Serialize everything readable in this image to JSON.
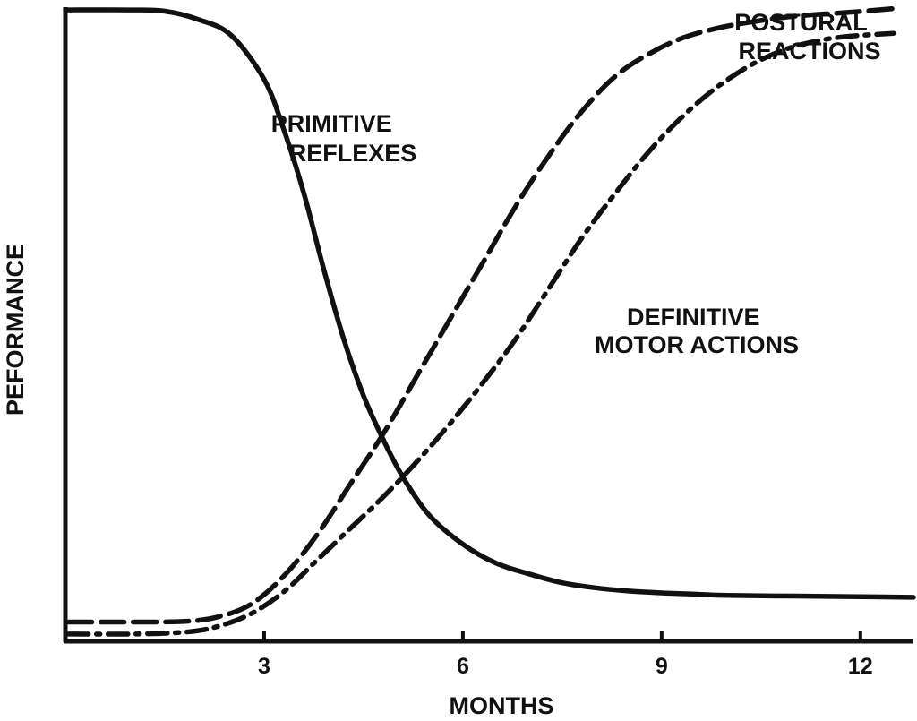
{
  "chart_data": {
    "type": "line",
    "title": "",
    "xlabel": "MONTHS",
    "ylabel": "PEFORMANCE",
    "xlim": [
      0,
      12.8
    ],
    "ylim": [
      0,
      100
    ],
    "x_ticks": [
      3,
      6,
      9,
      12
    ],
    "grid": false,
    "legend": "none",
    "series": [
      {
        "name": "PRIMITIVE REFLEXES",
        "line_style": "solid",
        "points": [
          [
            0,
            99
          ],
          [
            1,
            99
          ],
          [
            1.5,
            98.8
          ],
          [
            2,
            97.5
          ],
          [
            2.5,
            95
          ],
          [
            3,
            88
          ],
          [
            3.3,
            80
          ],
          [
            3.6,
            70
          ],
          [
            3.9,
            58
          ],
          [
            4.2,
            47
          ],
          [
            4.5,
            38
          ],
          [
            4.8,
            31
          ],
          [
            5.1,
            25
          ],
          [
            5.5,
            19
          ],
          [
            6,
            14.5
          ],
          [
            6.5,
            11.5
          ],
          [
            7,
            9.8
          ],
          [
            7.5,
            8.4
          ],
          [
            8,
            7.6
          ],
          [
            8.5,
            7.1
          ],
          [
            9,
            6.8
          ],
          [
            9.5,
            6.6
          ],
          [
            10,
            6.4
          ],
          [
            11,
            6.3
          ],
          [
            12,
            6.2
          ],
          [
            12.8,
            6.1
          ]
        ]
      },
      {
        "name": "POSTURAL REACTIONS",
        "line_style": "dashed",
        "points": [
          [
            0.05,
            2.2
          ],
          [
            1,
            2.2
          ],
          [
            1.8,
            2.3
          ],
          [
            2.3,
            3
          ],
          [
            2.8,
            5
          ],
          [
            3.3,
            9.5
          ],
          [
            3.8,
            16
          ],
          [
            4.3,
            24
          ],
          [
            4.8,
            32
          ],
          [
            5.3,
            41
          ],
          [
            5.8,
            50
          ],
          [
            6.3,
            59
          ],
          [
            6.8,
            68
          ],
          [
            7.3,
            76
          ],
          [
            7.8,
            83
          ],
          [
            8.3,
            88.5
          ],
          [
            8.8,
            92
          ],
          [
            9.3,
            94.5
          ],
          [
            9.8,
            96
          ],
          [
            10.3,
            97
          ],
          [
            11,
            98
          ],
          [
            11.8,
            98.6
          ],
          [
            12.5,
            99.2
          ]
        ]
      },
      {
        "name": "DEFINITIVE MOTOR ACTIONS",
        "line_style": "dash-dot",
        "points": [
          [
            0.05,
            0.3
          ],
          [
            1,
            0.3
          ],
          [
            1.8,
            0.6
          ],
          [
            2.3,
            1.5
          ],
          [
            2.8,
            3.5
          ],
          [
            3.3,
            7
          ],
          [
            3.8,
            12
          ],
          [
            4.3,
            17
          ],
          [
            4.8,
            22
          ],
          [
            5.3,
            27.5
          ],
          [
            5.8,
            33.5
          ],
          [
            6.3,
            40
          ],
          [
            6.8,
            47
          ],
          [
            7.3,
            55
          ],
          [
            7.8,
            63
          ],
          [
            8.3,
            70
          ],
          [
            8.8,
            76.5
          ],
          [
            9.3,
            82
          ],
          [
            9.8,
            86.5
          ],
          [
            10.3,
            90
          ],
          [
            10.8,
            92.5
          ],
          [
            11.3,
            94
          ],
          [
            11.8,
            94.8
          ],
          [
            12.5,
            95.3
          ]
        ]
      }
    ],
    "annotations": [
      {
        "text": [
          "PRIMITIVE",
          "REFLEXES"
        ],
        "series": "PRIMITIVE REFLEXES"
      },
      {
        "text": [
          "POSTURAL",
          "REACTIONS"
        ],
        "series": "POSTURAL REACTIONS"
      },
      {
        "text": [
          "DEFINITIVE",
          "MOTOR ACTIONS"
        ],
        "series": "DEFINITIVE MOTOR ACTIONS"
      }
    ]
  }
}
